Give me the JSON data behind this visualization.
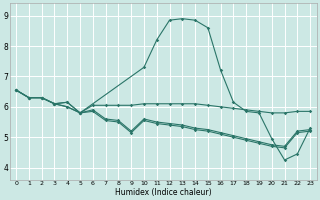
{
  "xlabel": "Humidex (Indice chaleur)",
  "bg_color": "#cce8e4",
  "grid_color": "#ffffff",
  "line_color": "#2a7568",
  "xlim": [
    -0.5,
    23.5
  ],
  "ylim": [
    3.6,
    9.4
  ],
  "xticks": [
    0,
    1,
    2,
    3,
    4,
    5,
    6,
    7,
    8,
    9,
    10,
    11,
    12,
    13,
    14,
    15,
    16,
    17,
    18,
    19,
    20,
    21,
    22,
    23
  ],
  "yticks": [
    4,
    5,
    6,
    7,
    8,
    9
  ],
  "bell_x": [
    0,
    1,
    2,
    3,
    4,
    5,
    10,
    11,
    12,
    13,
    14,
    15,
    16,
    17,
    18,
    19,
    20,
    21,
    22,
    23
  ],
  "bell_y": [
    6.55,
    6.3,
    6.3,
    6.1,
    6.15,
    5.8,
    7.3,
    8.2,
    8.85,
    8.9,
    8.85,
    8.6,
    7.2,
    6.15,
    5.85,
    5.8,
    4.95,
    4.25,
    4.45,
    5.3
  ],
  "flat1_x": [
    0,
    1,
    2,
    3,
    4,
    5,
    6,
    7,
    8,
    9,
    10,
    11,
    12,
    13,
    14,
    15,
    16,
    17,
    18,
    19,
    20,
    21,
    22,
    23
  ],
  "flat1_y": [
    6.55,
    6.3,
    6.3,
    6.1,
    6.15,
    5.8,
    6.05,
    6.05,
    6.05,
    6.05,
    6.1,
    6.1,
    6.1,
    6.1,
    6.1,
    6.05,
    6.0,
    5.95,
    5.9,
    5.85,
    5.8,
    5.8,
    5.85,
    5.85
  ],
  "flat2_x": [
    0,
    1,
    2,
    3,
    4,
    5,
    6,
    7,
    8,
    9,
    10,
    11,
    12,
    13,
    14,
    15,
    16,
    17,
    18,
    19,
    20,
    21,
    22,
    23
  ],
  "flat2_y": [
    6.55,
    6.3,
    6.3,
    6.1,
    6.0,
    5.8,
    5.9,
    5.6,
    5.55,
    5.2,
    5.6,
    5.5,
    5.45,
    5.4,
    5.3,
    5.25,
    5.15,
    5.05,
    4.95,
    4.85,
    4.75,
    4.7,
    5.2,
    5.25
  ],
  "flat3_x": [
    0,
    1,
    2,
    3,
    4,
    5,
    6,
    7,
    8,
    9,
    10,
    11,
    12,
    13,
    14,
    15,
    16,
    17,
    18,
    19,
    20,
    21,
    22,
    23
  ],
  "flat3_y": [
    6.55,
    6.3,
    6.3,
    6.1,
    6.0,
    5.8,
    5.85,
    5.55,
    5.5,
    5.15,
    5.55,
    5.45,
    5.4,
    5.35,
    5.25,
    5.2,
    5.1,
    5.0,
    4.9,
    4.8,
    4.7,
    4.65,
    5.15,
    5.2
  ]
}
